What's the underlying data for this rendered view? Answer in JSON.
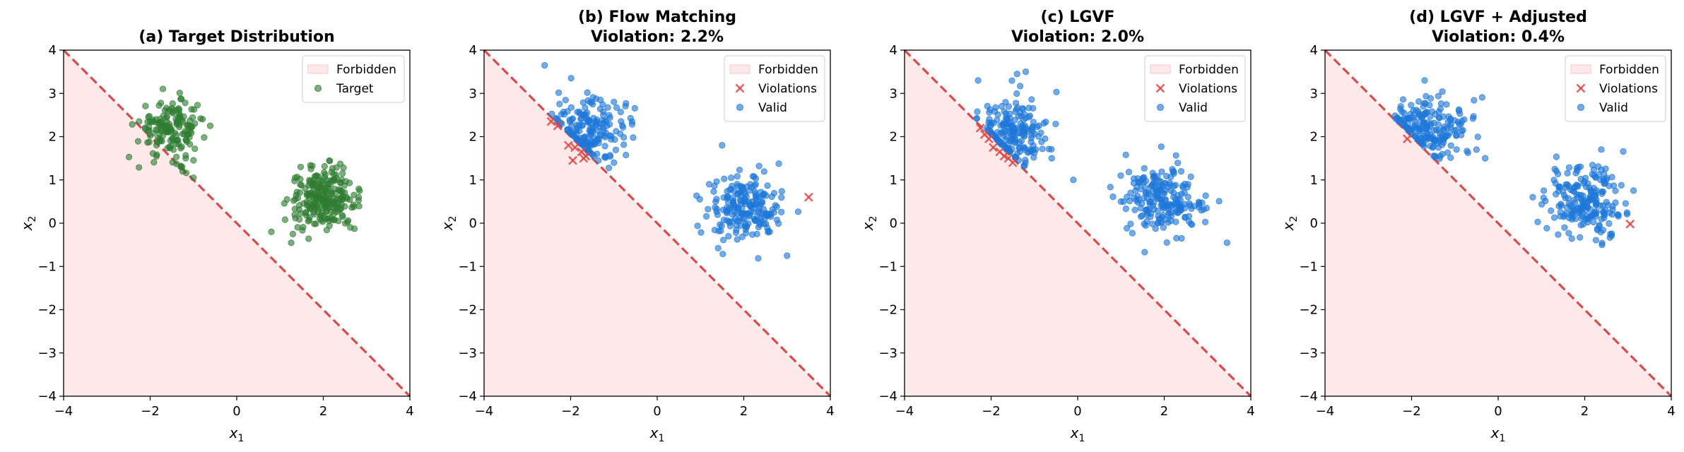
{
  "colors": {
    "forbidden_fill": "#fde8ea",
    "boundary": "#d94a4a",
    "target": "#2e7d32",
    "valid": "#1e78d8",
    "violation": "#d94a4a"
  },
  "chart_data": [
    {
      "type": "scatter",
      "title": "(a) Target Distribution",
      "title_lines": [
        "(a) Target Distribution"
      ],
      "xlabel": "x1",
      "ylabel": "x2",
      "xlim": [
        -4,
        4
      ],
      "ylim": [
        -4,
        4
      ],
      "xticks": [
        -4,
        -2,
        0,
        2,
        4
      ],
      "yticks": [
        -4,
        -3,
        -2,
        -1,
        0,
        1,
        2,
        3,
        4
      ],
      "tick_labels_x": [
        "−4",
        "−2",
        "0",
        "2",
        "4"
      ],
      "tick_labels_y": [
        "−4",
        "−3",
        "−2",
        "−1",
        "0",
        "1",
        "2",
        "3",
        "4"
      ],
      "boundary": {
        "description": "x1 + x2 = 0",
        "from": [
          -4,
          4
        ],
        "to": [
          4,
          -4
        ]
      },
      "legend": [
        {
          "label": "Forbidden",
          "kind": "patch"
        },
        {
          "label": "Target",
          "kind": "dot-target"
        }
      ],
      "clusters": [
        {
          "center": [
            -1.5,
            2.2
          ],
          "std": [
            0.38,
            0.33
          ],
          "n": 160
        },
        {
          "center": [
            2.0,
            0.55
          ],
          "std": [
            0.38,
            0.35
          ],
          "n": 240
        }
      ],
      "outliers": [
        [
          -1.25,
          1.2
        ],
        [
          -1.0,
          1.05
        ],
        [
          0.8,
          -0.2
        ],
        [
          1.35,
          1.05
        ]
      ],
      "violations": []
    },
    {
      "type": "scatter",
      "title": "(b) Flow Matching\nViolation: 2.2%",
      "title_lines": [
        "(b) Flow Matching",
        "Violation: 2.2%"
      ],
      "xlabel": "x1",
      "ylabel": "x2",
      "xlim": [
        -4,
        4
      ],
      "ylim": [
        -4,
        4
      ],
      "xticks": [
        -4,
        -2,
        0,
        2,
        4
      ],
      "yticks": [
        -4,
        -3,
        -2,
        -1,
        0,
        1,
        2,
        3,
        4
      ],
      "tick_labels_x": [
        "−4",
        "−2",
        "0",
        "2",
        "4"
      ],
      "tick_labels_y": [
        "−4",
        "−3",
        "−2",
        "−1",
        "0",
        "1",
        "2",
        "3",
        "4"
      ],
      "boundary": {
        "description": "x1 + x2 = 0",
        "from": [
          -4,
          4
        ],
        "to": [
          4,
          -4
        ]
      },
      "legend": [
        {
          "label": "Forbidden",
          "kind": "patch"
        },
        {
          "label": "Violations",
          "kind": "x-violation"
        },
        {
          "label": "Valid",
          "kind": "dot-valid"
        }
      ],
      "clusters": [
        {
          "center": [
            -1.55,
            2.15
          ],
          "std": [
            0.42,
            0.38
          ],
          "n": 190
        },
        {
          "center": [
            2.0,
            0.4
          ],
          "std": [
            0.4,
            0.4
          ],
          "n": 200
        }
      ],
      "outliers": [
        [
          -2.6,
          3.65
        ],
        [
          -1.0,
          1.4
        ],
        [
          1.5,
          1.8
        ],
        [
          1.2,
          0.9
        ],
        [
          2.6,
          -0.2
        ],
        [
          3.0,
          -0.75
        ]
      ],
      "violations": [
        [
          -2.45,
          2.35
        ],
        [
          -2.3,
          2.25
        ],
        [
          -2.05,
          1.8
        ],
        [
          -1.9,
          1.75
        ],
        [
          -1.75,
          1.65
        ],
        [
          -1.65,
          1.55
        ],
        [
          -1.95,
          1.45
        ],
        [
          -1.7,
          1.5
        ],
        [
          3.5,
          0.6
        ]
      ]
    },
    {
      "type": "scatter",
      "title": "(c) LGVF\nViolation: 2.0%",
      "title_lines": [
        "(c) LGVF",
        "Violation: 2.0%"
      ],
      "xlabel": "x1",
      "ylabel": "x2",
      "xlim": [
        -4,
        4
      ],
      "ylim": [
        -4,
        4
      ],
      "xticks": [
        -4,
        -2,
        0,
        2,
        4
      ],
      "yticks": [
        -4,
        -3,
        -2,
        -1,
        0,
        1,
        2,
        3,
        4
      ],
      "tick_labels_x": [
        "−4",
        "−2",
        "0",
        "2",
        "4"
      ],
      "tick_labels_y": [
        "−4",
        "−3",
        "−2",
        "−1",
        "0",
        "1",
        "2",
        "3",
        "4"
      ],
      "boundary": {
        "description": "x1 + x2 = 0",
        "from": [
          -4,
          4
        ],
        "to": [
          4,
          -4
        ]
      },
      "legend": [
        {
          "label": "Forbidden",
          "kind": "patch"
        },
        {
          "label": "Violations",
          "kind": "x-violation"
        },
        {
          "label": "Valid",
          "kind": "dot-valid"
        }
      ],
      "clusters": [
        {
          "center": [
            -1.5,
            2.1
          ],
          "std": [
            0.42,
            0.4
          ],
          "n": 190
        },
        {
          "center": [
            2.0,
            0.5
          ],
          "std": [
            0.45,
            0.4
          ],
          "n": 210
        }
      ],
      "outliers": [
        [
          -2.3,
          3.3
        ],
        [
          -1.4,
          3.45
        ],
        [
          -1.2,
          3.5
        ],
        [
          -0.6,
          1.5
        ],
        [
          -0.1,
          1.0
        ],
        [
          1.0,
          0.5
        ],
        [
          2.4,
          -0.35
        ]
      ],
      "violations": [
        [
          -2.25,
          2.2
        ],
        [
          -2.15,
          2.05
        ],
        [
          -2.05,
          1.95
        ],
        [
          -1.95,
          1.75
        ],
        [
          -1.8,
          1.65
        ],
        [
          -1.7,
          1.55
        ],
        [
          -1.6,
          1.5
        ],
        [
          -1.5,
          1.4
        ]
      ]
    },
    {
      "type": "scatter",
      "title": "(d) LGVF + Adjusted\nViolation: 0.4%",
      "title_lines": [
        "(d) LGVF + Adjusted",
        "Violation: 0.4%"
      ],
      "xlabel": "x1",
      "ylabel": "x2",
      "xlim": [
        -4,
        4
      ],
      "ylim": [
        -4,
        4
      ],
      "xticks": [
        -4,
        -2,
        0,
        2,
        4
      ],
      "yticks": [
        -4,
        -3,
        -2,
        -1,
        0,
        1,
        2,
        3,
        4
      ],
      "tick_labels_x": [
        "−4",
        "−2",
        "0",
        "2",
        "4"
      ],
      "tick_labels_y": [
        "−4",
        "−3",
        "−2",
        "−1",
        "0",
        "1",
        "2",
        "3",
        "4"
      ],
      "boundary": {
        "description": "x1 + x2 = 0",
        "from": [
          -4,
          4
        ],
        "to": [
          4,
          -4
        ]
      },
      "legend": [
        {
          "label": "Forbidden",
          "kind": "patch"
        },
        {
          "label": "Violations",
          "kind": "x-violation"
        },
        {
          "label": "Valid",
          "kind": "dot-valid"
        }
      ],
      "clusters": [
        {
          "center": [
            -1.6,
            2.2
          ],
          "std": [
            0.42,
            0.38
          ],
          "n": 190
        },
        {
          "center": [
            2.0,
            0.55
          ],
          "std": [
            0.42,
            0.4
          ],
          "n": 210
        }
      ],
      "outliers": [
        [
          -1.7,
          3.3
        ],
        [
          -0.5,
          1.7
        ],
        [
          -0.3,
          1.5
        ],
        [
          0.8,
          0.6
        ],
        [
          2.4,
          -0.5
        ]
      ],
      "violations": [
        [
          -2.1,
          1.95
        ],
        [
          3.05,
          -0.02
        ]
      ]
    }
  ]
}
